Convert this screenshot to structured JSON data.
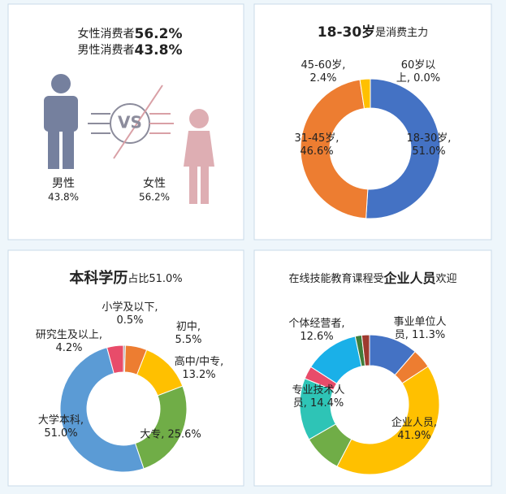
{
  "chart_data": [
    {
      "type": "gender",
      "annotations": [
        "女性消费者",
        "男性消费者"
      ],
      "categories": [
        "男性",
        "女性"
      ],
      "values": [
        43.8,
        56.2
      ],
      "value_labels": [
        "43.8%",
        "56.2%"
      ],
      "colors": [
        "#5d6a8e",
        "#d9a0a6"
      ]
    },
    {
      "type": "donut",
      "title": [
        "18-30岁",
        "是消费主力"
      ],
      "title_bold": 0,
      "categories": [
        "18-30岁",
        "31-45岁",
        "45-60岁",
        "60岁以上"
      ],
      "values": [
        51.0,
        46.6,
        2.4,
        0.0
      ],
      "value_labels": [
        "18-30岁,\n51.0%",
        "31-45岁,\n46.6%",
        "45-60岁,\n2.4%",
        "60岁以\n上, 0.0%"
      ],
      "colors": [
        "#4472c4",
        "#ed7d31",
        "#ffc000",
        "#a5a5a5"
      ]
    },
    {
      "type": "donut",
      "title": [
        "本科学历",
        "占比51.0%"
      ],
      "title_bold": 0,
      "categories": [
        "小学及以下",
        "初中",
        "高中/中专",
        "大专",
        "大学本科",
        "研究生及以上"
      ],
      "values": [
        0.5,
        5.5,
        13.2,
        25.6,
        51.0,
        4.2
      ],
      "value_labels": [
        "小学及以下,\n0.5%",
        "初中,\n5.5%",
        "高中/中专,\n13.2%",
        "大专, 25.6%",
        "大学本科,\n51.0%",
        "研究生及以上,\n4.2%"
      ],
      "colors": [
        "#a5a5a5",
        "#ed7d31",
        "#ffc000",
        "#70ad47",
        "#5b9bd5",
        "#e84c6a"
      ]
    },
    {
      "type": "donut",
      "title": [
        "在线技能教育课程受",
        "企业人员",
        "欢迎"
      ],
      "title_bold": 1,
      "categories": [
        "事业单位人员",
        null,
        "企业人员",
        null,
        "专业技术人员",
        null,
        "个体经营者",
        null,
        null
      ],
      "values": [
        11.3,
        4.5,
        41.9,
        9.0,
        14.4,
        3.0,
        12.6,
        1.5,
        1.8
      ],
      "value_labels": [
        "事业单位人\n员, 11.3%",
        null,
        "企业人员,\n41.9%",
        null,
        "专业技术人\n员, 14.4%",
        null,
        "个体经营者,\n12.6%",
        null,
        null
      ],
      "colors": [
        "#4472c4",
        "#ed7d31",
        "#ffc000",
        "#70ad47",
        "#2ec4b6",
        "#e84c6a",
        "#1ab0e8",
        "#3f7d3a",
        "#9e3a2f"
      ]
    }
  ]
}
